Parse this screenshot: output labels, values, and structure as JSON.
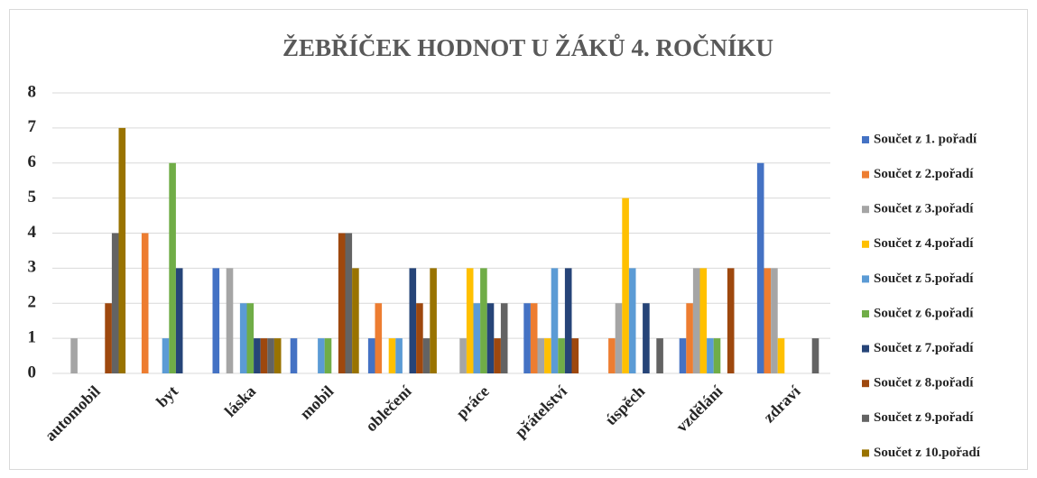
{
  "chart_data": {
    "type": "bar",
    "title": "ŽEBŘÍČEK HODNOT U ŽÁKŮ 4. ROČNÍKU",
    "categories": [
      "automobil",
      "byt",
      "láska",
      "mobil",
      "oblečení",
      "práce",
      "přátelství",
      "úspěch",
      "vzdělání",
      "zdraví"
    ],
    "series": [
      {
        "name": "Součet z 1. pořadí",
        "color": "#4472c4",
        "values": [
          0,
          0,
          3,
          1,
          1,
          0,
          2,
          0,
          1,
          6
        ]
      },
      {
        "name": "Součet z 2.pořadí",
        "color": "#ed7d31",
        "values": [
          0,
          4,
          0,
          0,
          2,
          0,
          2,
          1,
          2,
          3
        ]
      },
      {
        "name": "Součet z 3.pořadí",
        "color": "#a5a5a5",
        "values": [
          1,
          0,
          3,
          0,
          0,
          1,
          1,
          2,
          3,
          3
        ]
      },
      {
        "name": "Součet z 4.pořadí",
        "color": "#ffc000",
        "values": [
          0,
          0,
          0,
          0,
          1,
          3,
          1,
          5,
          3,
          1
        ]
      },
      {
        "name": "Součet z 5.pořadí",
        "color": "#5b9bd5",
        "values": [
          0,
          1,
          2,
          1,
          1,
          2,
          3,
          3,
          1,
          0
        ]
      },
      {
        "name": "Součet z 6.pořadí",
        "color": "#70ad47",
        "values": [
          0,
          6,
          2,
          1,
          0,
          3,
          1,
          0,
          1,
          0
        ]
      },
      {
        "name": "Součet z 7.pořadí",
        "color": "#264478",
        "values": [
          0,
          3,
          1,
          0,
          3,
          2,
          3,
          2,
          0,
          0
        ]
      },
      {
        "name": "Součet z 8.pořadí",
        "color": "#9e480e",
        "values": [
          2,
          0,
          1,
          4,
          2,
          1,
          1,
          0,
          3,
          0
        ]
      },
      {
        "name": "Součet z 9.pořadí",
        "color": "#636363",
        "values": [
          4,
          0,
          1,
          4,
          1,
          2,
          0,
          1,
          0,
          1
        ]
      },
      {
        "name": "Součet z 10.pořadí",
        "color": "#997300",
        "values": [
          7,
          0,
          1,
          3,
          3,
          0,
          0,
          0,
          0,
          0
        ]
      }
    ],
    "ylim": [
      0,
      8
    ],
    "yticks": [
      0,
      1,
      2,
      3,
      4,
      5,
      6,
      7,
      8
    ],
    "grid": true,
    "legend": "right"
  }
}
